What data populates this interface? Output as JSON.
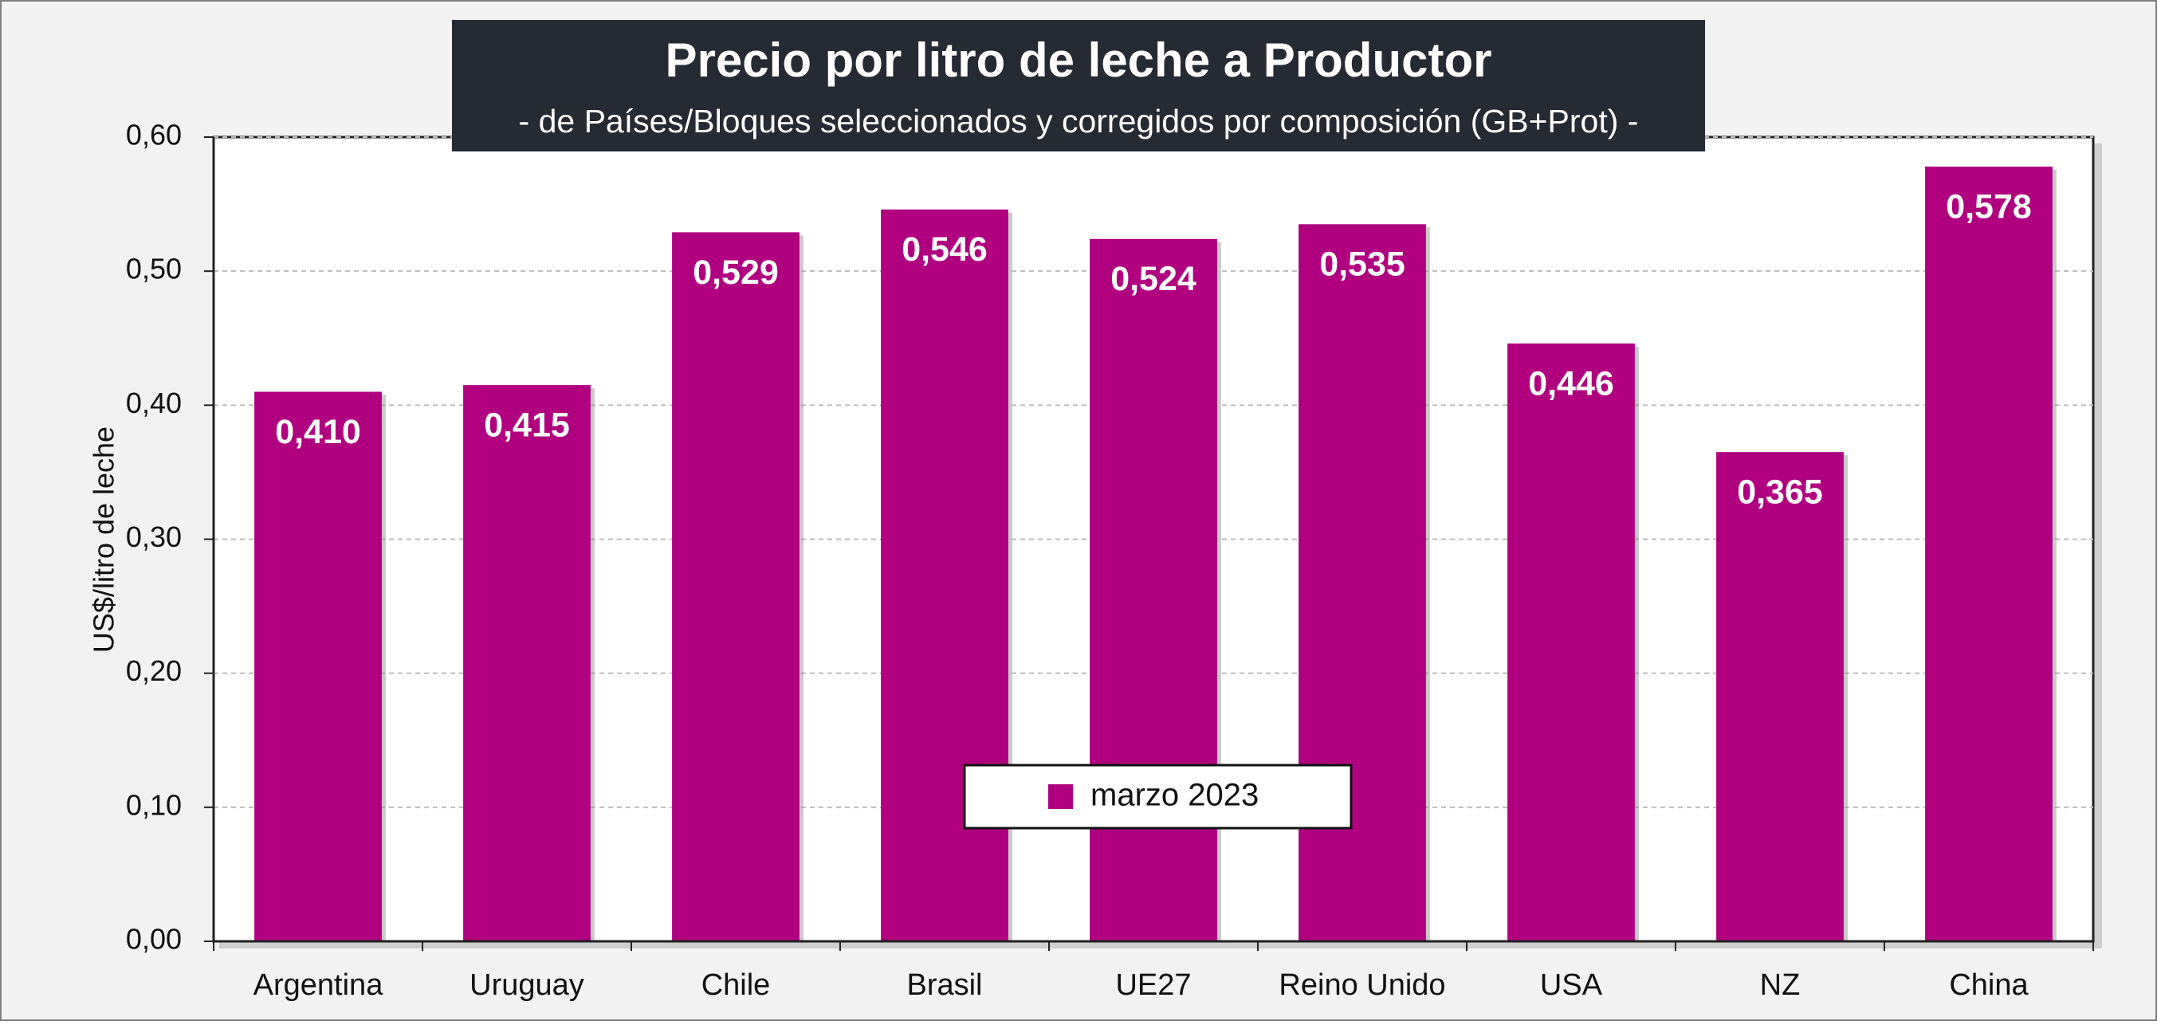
{
  "chart_data": {
    "type": "bar",
    "title": "Precio por litro de leche a Productor",
    "subtitle": "-  de Países/Bloques seleccionados y corregidos por composición (GB+Prot) -",
    "xlabel": "",
    "ylabel": "US$/litro de leche",
    "ylim": [
      0,
      0.6
    ],
    "yticks": [
      0,
      0.1,
      0.2,
      0.3,
      0.4,
      0.5,
      0.6
    ],
    "ytick_labels": [
      "0,00",
      "0,10",
      "0,20",
      "0,30",
      "0,40",
      "0,50",
      "0,60"
    ],
    "grid": true,
    "legend_position": "bottom-center",
    "categories": [
      "Argentina",
      "Uruguay",
      "Chile",
      "Brasil",
      "UE27",
      "Reino Unido",
      "USA",
      "NZ",
      "China"
    ],
    "series": [
      {
        "name": "marzo 2023",
        "values": [
          0.41,
          0.415,
          0.529,
          0.546,
          0.524,
          0.535,
          0.446,
          0.365,
          0.578
        ],
        "labels": [
          "0,410",
          "0,415",
          "0,529",
          "0,546",
          "0,524",
          "0,535",
          "0,446",
          "0,365",
          "0,578"
        ]
      }
    ]
  },
  "colors": {
    "bar": "#b0007f",
    "title_bg": "#262a33",
    "title_text": "#ffffff",
    "background": "#f2f2f2",
    "plot_background": "#ffffff"
  }
}
